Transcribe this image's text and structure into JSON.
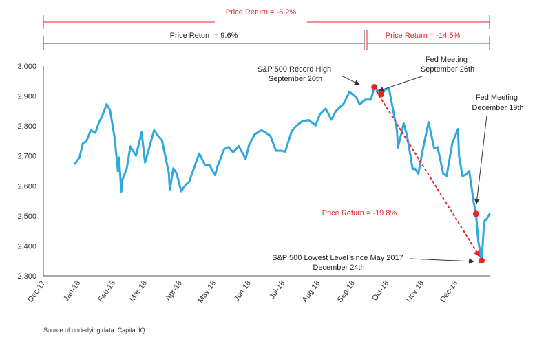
{
  "chart_data": {
    "type": "line",
    "series": [
      {
        "color": "#2fa8dc",
        "x": [
          "2017-12-29",
          "2018-01-02",
          "2018-01-05",
          "2018-01-08",
          "2018-01-12",
          "2018-01-16",
          "2018-01-19",
          "2018-01-22",
          "2018-01-26",
          "2018-01-29",
          "2018-02-02",
          "2018-02-05",
          "2018-02-06",
          "2018-02-08",
          "2018-02-09",
          "2018-02-13",
          "2018-02-16",
          "2018-02-21",
          "2018-02-26",
          "2018-03-01",
          "2018-03-02",
          "2018-03-09",
          "2018-03-13",
          "2018-03-16",
          "2018-03-22",
          "2018-03-23",
          "2018-03-26",
          "2018-03-29",
          "2018-04-02",
          "2018-04-06",
          "2018-04-09",
          "2018-04-13",
          "2018-04-18",
          "2018-04-23",
          "2018-04-27",
          "2018-05-02",
          "2018-05-04",
          "2018-05-10",
          "2018-05-14",
          "2018-05-18",
          "2018-05-23",
          "2018-05-29",
          "2018-06-01",
          "2018-06-06",
          "2018-06-12",
          "2018-06-15",
          "2018-06-20",
          "2018-06-25",
          "2018-06-29",
          "2018-07-03",
          "2018-07-09",
          "2018-07-13",
          "2018-07-18",
          "2018-07-24",
          "2018-07-30",
          "2018-08-03",
          "2018-08-08",
          "2018-08-13",
          "2018-08-17",
          "2018-08-24",
          "2018-08-29",
          "2018-09-04",
          "2018-09-07",
          "2018-09-12",
          "2018-09-17",
          "2018-09-20",
          "2018-09-26",
          "2018-10-01",
          "2018-10-03",
          "2018-10-05",
          "2018-10-10",
          "2018-10-11",
          "2018-10-16",
          "2018-10-19",
          "2018-10-24",
          "2018-10-26",
          "2018-10-29",
          "2018-11-02",
          "2018-11-07",
          "2018-11-12",
          "2018-11-15",
          "2018-11-20",
          "2018-11-23",
          "2018-11-28",
          "2018-12-03",
          "2018-12-04",
          "2018-12-07",
          "2018-12-10",
          "2018-12-13",
          "2018-12-17",
          "2018-12-19",
          "2018-12-21",
          "2018-12-24",
          "2018-12-26",
          "2018-12-27",
          "2018-12-28",
          "2018-12-31"
        ],
        "y": [
          2674,
          2695,
          2743,
          2748,
          2786,
          2777,
          2810,
          2833,
          2873,
          2853,
          2762,
          2649,
          2695,
          2581,
          2620,
          2662,
          2732,
          2701,
          2779,
          2678,
          2691,
          2786,
          2765,
          2752,
          2644,
          2588,
          2659,
          2641,
          2582,
          2604,
          2613,
          2656,
          2708,
          2670,
          2670,
          2636,
          2663,
          2723,
          2730,
          2712,
          2733,
          2690,
          2735,
          2772,
          2786,
          2780,
          2767,
          2717,
          2718,
          2714,
          2784,
          2801,
          2815,
          2820,
          2802,
          2840,
          2858,
          2821,
          2850,
          2875,
          2914,
          2896,
          2872,
          2888,
          2888,
          2930,
          2906,
          2924,
          2925,
          2885,
          2785,
          2728,
          2809,
          2768,
          2656,
          2658,
          2641,
          2723,
          2813,
          2726,
          2730,
          2641,
          2633,
          2743,
          2790,
          2700,
          2633,
          2637,
          2650,
          2545,
          2507,
          2417,
          2351,
          2467,
          2488,
          2486,
          2506
        ]
      }
    ],
    "x_tick_labels": [
      "Dec-17",
      "Jan-18",
      "Feb-18",
      "Mar-18",
      "Apr-18",
      "May-18",
      "Jun-18",
      "Jul-18",
      "Aug-18",
      "Sep-18",
      "Oct-18",
      "Nov-18",
      "Dec-18"
    ],
    "x_tick_dates": [
      "2017-12-01",
      "2018-01-01",
      "2018-02-01",
      "2018-03-01",
      "2018-04-01",
      "2018-05-01",
      "2018-06-01",
      "2018-07-01",
      "2018-08-01",
      "2018-09-01",
      "2018-10-01",
      "2018-11-01",
      "2018-12-01"
    ],
    "y_tick_labels": [
      "2,300",
      "2,400",
      "2,500",
      "2,600",
      "2,700",
      "2,800",
      "2,900",
      "3,000"
    ],
    "y_ticks": [
      2300,
      2400,
      2500,
      2600,
      2700,
      2800,
      2900,
      3000
    ],
    "ylim": [
      2300,
      3000
    ],
    "grid": false,
    "marker_color": "#e8232a",
    "markers": [
      {
        "x": "2018-09-20",
        "y": 2930
      },
      {
        "x": "2018-09-26",
        "y": 2906
      },
      {
        "x": "2018-12-19",
        "y": 2507
      },
      {
        "x": "2018-12-24",
        "y": 2351
      }
    ],
    "point_annotations": [
      {
        "lines": [
          "S&P 500  Record High",
          "September 20th"
        ]
      },
      {
        "lines": [
          "Fed Meeting",
          "September 26th"
        ]
      },
      {
        "lines": [
          "Fed Meeting",
          "December 19th"
        ]
      },
      {
        "lines": [
          "S&P 500 Lowest Level since May 2017",
          "December 24th"
        ]
      }
    ],
    "range_annotations": [
      {
        "label": "Price Return =  -6.2%",
        "color": "#e8232a"
      },
      {
        "label": "Price Return =  9.6%",
        "color": "#4a4a4a"
      },
      {
        "label": "Price Return =  -14.5%",
        "color": "#e8232a"
      }
    ],
    "trend_annotation": {
      "label": "Price Return = -19.8%",
      "color": "#e8232a"
    }
  },
  "footer": {
    "source": "Source of underlying data: Capital IQ"
  }
}
